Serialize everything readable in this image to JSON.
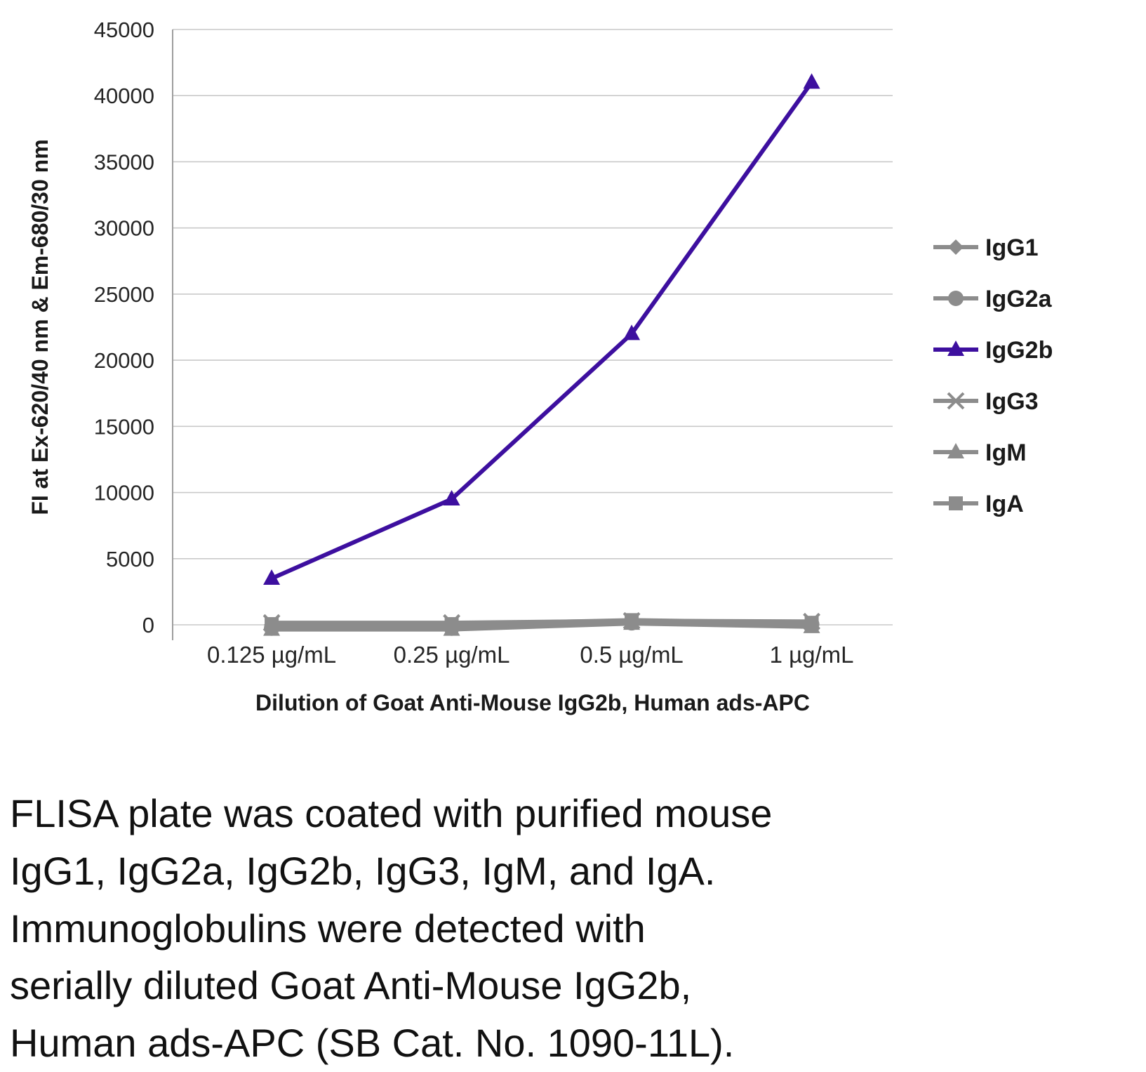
{
  "chart_data": {
    "type": "line",
    "x_categories": [
      "0.125 µg/mL",
      "0.25 µg/mL",
      "0.5 µg/mL",
      "1 µg/mL"
    ],
    "series": [
      {
        "name": "IgG1",
        "marker": "diamond",
        "color": "#8c8c8c",
        "values": [
          0,
          0,
          150,
          100
        ]
      },
      {
        "name": "IgG2a",
        "marker": "circle",
        "color": "#8c8c8c",
        "values": [
          -250,
          -250,
          150,
          50
        ]
      },
      {
        "name": "IgG2b",
        "marker": "triangle",
        "color": "#3d0f9f",
        "values": [
          3500,
          9500,
          22000,
          41000
        ]
      },
      {
        "name": "IgG3",
        "marker": "x",
        "color": "#8c8c8c",
        "values": [
          150,
          150,
          300,
          250
        ]
      },
      {
        "name": "IgM",
        "marker": "triangle",
        "color": "#8c8c8c",
        "values": [
          -350,
          -350,
          100,
          -150
        ]
      },
      {
        "name": "IgA",
        "marker": "square",
        "color": "#8c8c8c",
        "values": [
          50,
          50,
          350,
          150
        ]
      }
    ],
    "title": "",
    "xlabel": "Dilution of Goat Anti-Mouse IgG2b, Human ads-APC",
    "ylabel": "FI at Ex-620/40 nm & Em-680/30 nm",
    "ylim": [
      0,
      45000
    ],
    "ytick_step": 5000,
    "grid": "horizontal",
    "legend_position": "right",
    "gridline_color": "#c9c9c9",
    "axis_color": "#9e9e9e"
  },
  "caption": {
    "lines": [
      "FLISA plate was coated with purified mouse",
      "IgG1, IgG2a, IgG2b, IgG3, IgM, and IgA.",
      "Immunoglobulins were detected with",
      "serially diluted Goat Anti-Mouse IgG2b,",
      "Human ads-APC (SB Cat. No. 1090-11L)."
    ]
  }
}
